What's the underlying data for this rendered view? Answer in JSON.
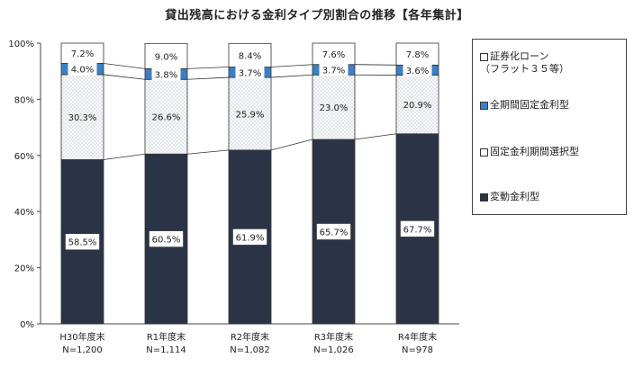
{
  "chart_data": {
    "type": "bar",
    "title": "貸出残高における金利タイプ別割合の推移【各年集計】",
    "categories": [
      "H30年度末",
      "R1年度末",
      "R2年度末",
      "R3年度末",
      "R4年度末"
    ],
    "n_labels": [
      "N=1,200",
      "N=1,114",
      "N=1,082",
      "N=1,026",
      "N=978"
    ],
    "series": [
      {
        "name": "変動金利型",
        "values": [
          58.5,
          60.5,
          61.9,
          65.7,
          67.7
        ],
        "color": "#2b3447"
      },
      {
        "name": "固定金利期間選択型",
        "values": [
          30.3,
          26.6,
          25.9,
          23.0,
          20.9
        ],
        "color": "#f4f6f8"
      },
      {
        "name": "全期間固定金利型",
        "values": [
          4.0,
          3.8,
          3.7,
          3.7,
          3.6
        ],
        "color": "#3b7fc4"
      },
      {
        "name": "証券化ローン（フラット３５等）",
        "values": [
          7.2,
          9.0,
          8.4,
          7.6,
          7.8
        ],
        "color": "#ffffff"
      }
    ],
    "value_labels": [
      [
        "58.5%",
        "30.3%",
        "4.0%",
        "7.2%"
      ],
      [
        "60.5%",
        "26.6%",
        "3.8%",
        "9.0%"
      ],
      [
        "61.9%",
        "25.9%",
        "3.7%",
        "8.4%"
      ],
      [
        "65.7%",
        "23.0%",
        "3.7%",
        "7.6%"
      ],
      [
        "67.7%",
        "20.9%",
        "3.6%",
        "7.8%"
      ]
    ],
    "y_ticks": [
      "0%",
      "20%",
      "40%",
      "60%",
      "80%",
      "100%"
    ],
    "ylim": [
      0,
      100
    ],
    "legend": {
      "items": [
        {
          "line1": "証券化ローン",
          "line2": "（フラット３５等）"
        },
        {
          "line1": "全期間固定金利型"
        },
        {
          "line1": "固定金利期間選択型"
        },
        {
          "line1": "変動金利型"
        }
      ]
    }
  }
}
